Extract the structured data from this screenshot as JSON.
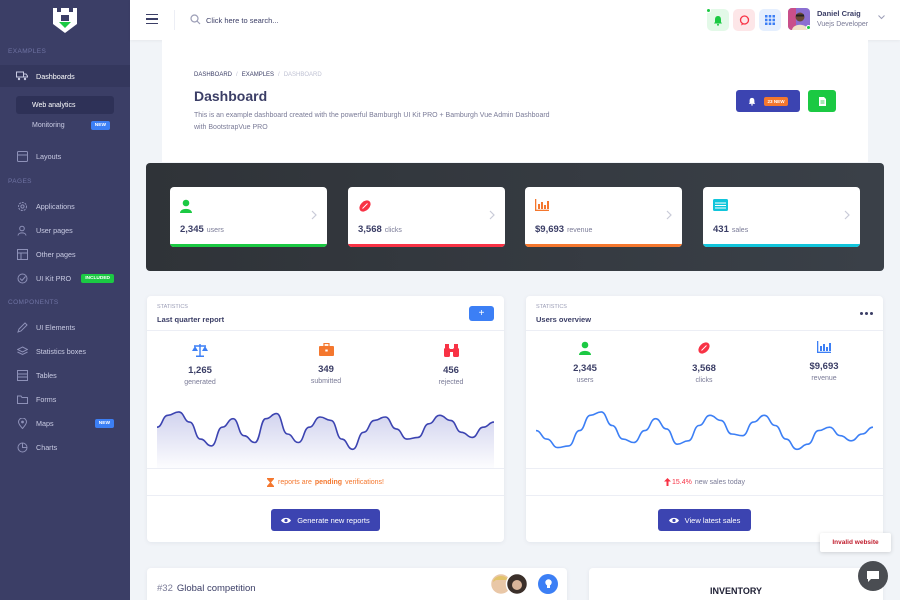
{
  "sidebar": {
    "sections": [
      "Examples",
      "Pages",
      "Components"
    ],
    "items": [
      {
        "label": "Dashboards",
        "icon": "truck-icon"
      },
      {
        "label": "Layouts",
        "icon": "layouts-icon"
      },
      {
        "label": "Applications",
        "icon": "gear-icon"
      },
      {
        "label": "User pages",
        "icon": "user-icon"
      },
      {
        "label": "Other pages",
        "icon": "grid-icon"
      },
      {
        "label": "UI Kit PRO",
        "icon": "target-icon",
        "badge": "Included"
      },
      {
        "label": "UI Elements",
        "icon": "pencil-icon"
      },
      {
        "label": "Statistics boxes",
        "icon": "layers-icon"
      },
      {
        "label": "Tables",
        "icon": "table-icon"
      },
      {
        "label": "Forms",
        "icon": "folder-icon"
      },
      {
        "label": "Maps",
        "icon": "pin-icon",
        "badge": "New"
      },
      {
        "label": "Charts",
        "icon": "pie-icon"
      }
    ],
    "sub_items": [
      {
        "label": "Web analytics"
      },
      {
        "label": "Monitoring",
        "badge": "New"
      }
    ]
  },
  "header": {
    "search_placeholder": "Click here to search...",
    "user_name": "Daniel Craig",
    "user_role": "Vuejs Developer"
  },
  "page": {
    "breadcrumb": [
      "Dashboard",
      "Examples",
      "Dashboard"
    ],
    "title": "Dashboard",
    "description": "This is an example dashboard created with the powerful Bamburgh UI Kit PRO + Bamburgh Vue Admin Dashboard with BootstrapVue PRO",
    "new_badge": "23 NEW"
  },
  "stats": [
    {
      "value": "2,345",
      "label": "users",
      "color": "#1bc943"
    },
    {
      "value": "3,568",
      "label": "clicks",
      "color": "#f83245"
    },
    {
      "value": "$9,693",
      "label": "revenue",
      "color": "#f4772e"
    },
    {
      "value": "431",
      "label": "sales",
      "color": "#11c5db"
    }
  ],
  "report_card": {
    "small": "Statistics",
    "title": "Last quarter report",
    "metrics": [
      {
        "value": "1,265",
        "label": "generated",
        "color": "#3c7ff5"
      },
      {
        "value": "349",
        "label": "submitted",
        "color": "#f4772e"
      },
      {
        "value": "456",
        "label": "rejected",
        "color": "#f83245"
      }
    ],
    "note_pre": "reports are",
    "note_bold": "pending",
    "note_post": "verifications!",
    "button": "Generate new reports",
    "series": [
      48,
      62,
      66,
      54,
      34,
      26,
      48,
      58,
      38,
      30,
      58,
      64,
      40,
      30,
      48,
      60,
      56,
      34,
      22,
      42,
      56,
      60,
      46,
      34,
      36,
      52,
      62,
      56,
      42,
      36,
      48,
      54
    ]
  },
  "users_card": {
    "small": "Statistics",
    "title": "Users overview",
    "metrics": [
      {
        "value": "2,345",
        "label": "users",
        "color": "#1bc943"
      },
      {
        "value": "3,568",
        "label": "clicks",
        "color": "#f83245"
      },
      {
        "value": "$9,693",
        "label": "revenue",
        "color": "#3c7ff5"
      }
    ],
    "note_value": "15.4%",
    "note_text": "new sales today",
    "button": "View latest sales",
    "series": [
      44,
      34,
      24,
      26,
      44,
      62,
      66,
      50,
      34,
      30,
      44,
      58,
      46,
      28,
      32,
      50,
      62,
      56,
      40,
      38,
      54,
      62,
      50,
      34,
      22,
      28,
      44,
      48,
      38,
      32,
      40,
      48
    ]
  },
  "competition": {
    "number": "#32",
    "title": "Global competition"
  },
  "inventory": {
    "title": "INVENTORY"
  },
  "invalid_notice": "Invalid website"
}
